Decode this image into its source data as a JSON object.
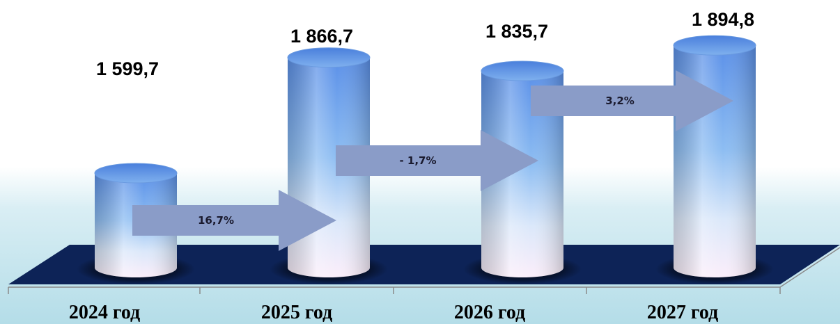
{
  "chart_data": {
    "type": "bar",
    "style": "3d-cylinder",
    "categories": [
      "2024 год",
      "2025 год",
      "2026 год",
      "2027 год"
    ],
    "values": [
      1599.7,
      1866.7,
      1835.7,
      1894.8
    ],
    "value_labels": [
      "1 599,7",
      "1 866,7",
      "1 835,7",
      "1 894,8"
    ],
    "changes": [
      {
        "from": "2024 год",
        "to": "2025 год",
        "label": "16,7%"
      },
      {
        "from": "2025 год",
        "to": "2026 год",
        "label": "- 1,7%"
      },
      {
        "from": "2026 год",
        "to": "2027 год",
        "label": "3,2%"
      }
    ],
    "title": "",
    "xlabel": "",
    "ylabel": "",
    "grid": false,
    "legend": "none"
  },
  "colors": {
    "bar_top": "#5b90e8",
    "bar_mid": "#b9d8f6",
    "bar_bottom": "#fbeefa",
    "floor": "#0d2357",
    "arrow": "#8a9cc8"
  }
}
